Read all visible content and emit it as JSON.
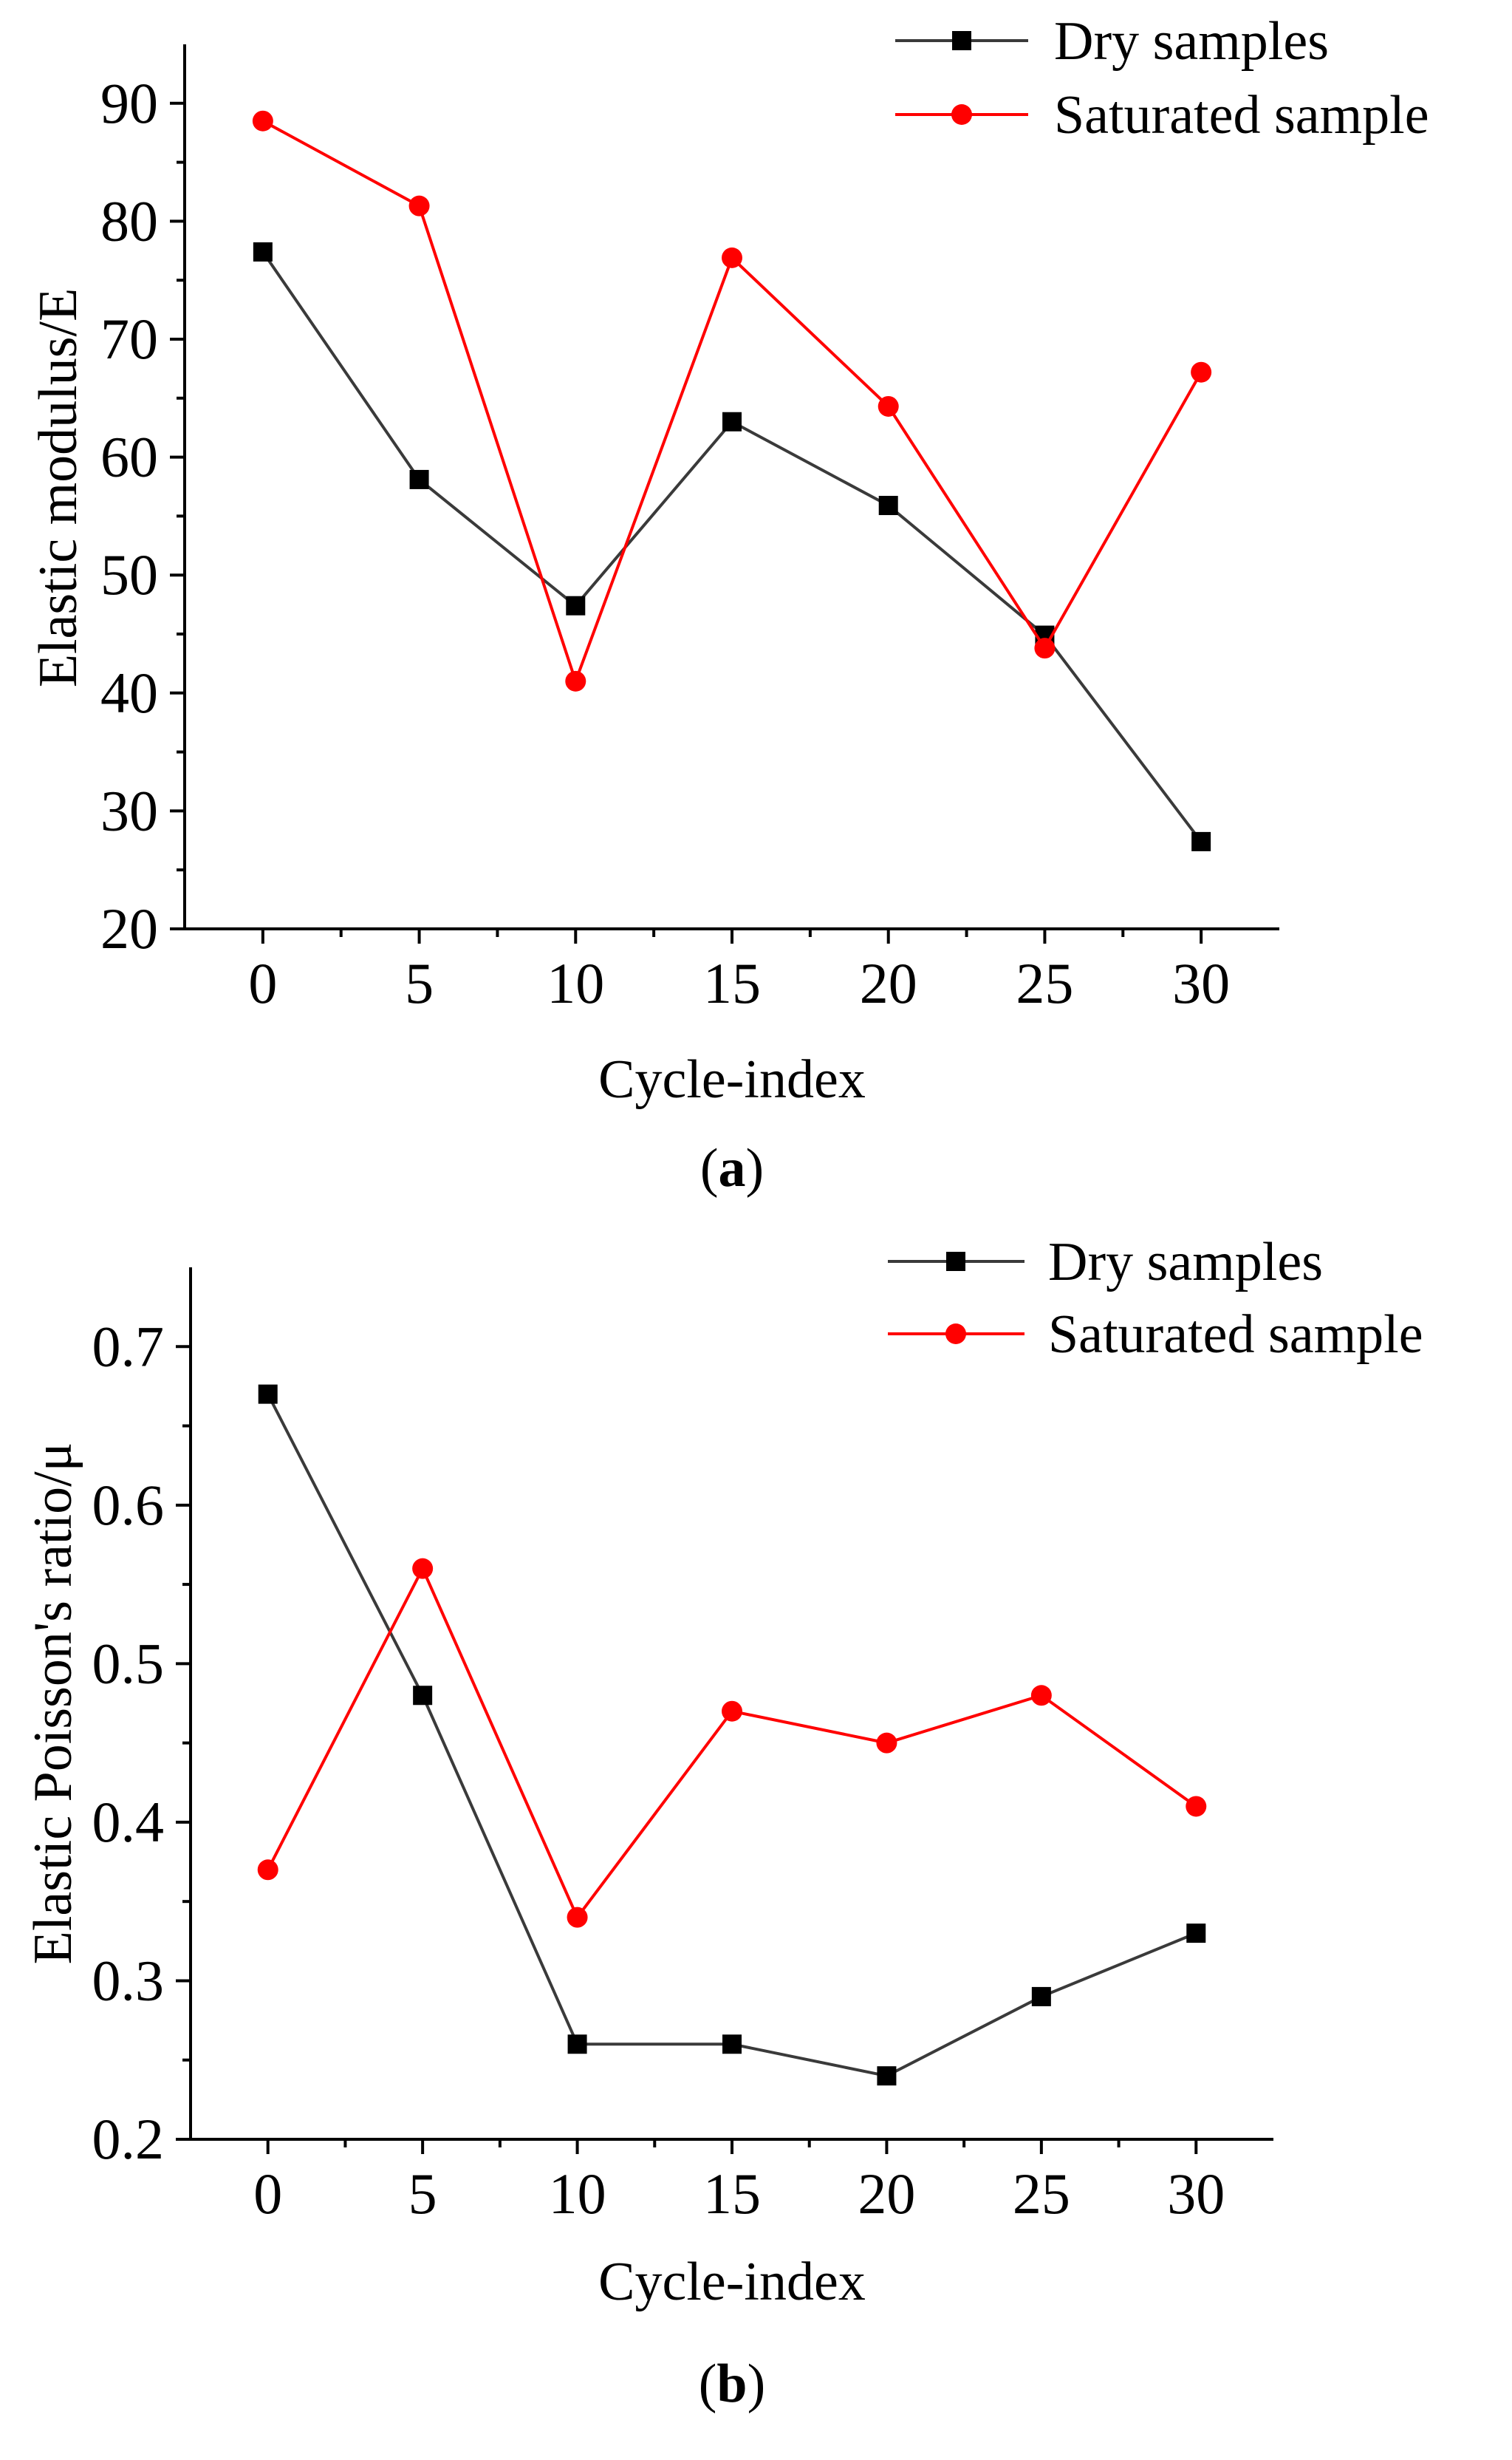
{
  "chart_data": [
    {
      "type": "line",
      "id": "a",
      "caption_letter": "a",
      "xlabel": "Cycle-index",
      "ylabel": "Elastic modulus/E",
      "x": [
        0,
        5,
        10,
        15,
        20,
        25,
        30
      ],
      "xticks": [
        0,
        5,
        10,
        15,
        20,
        25,
        30
      ],
      "xlim": [
        -2.5,
        32.5
      ],
      "ylim": [
        20,
        95
      ],
      "yticks": [
        20,
        30,
        40,
        50,
        60,
        70,
        80,
        90
      ],
      "ytick_labels": [
        "20",
        "30",
        "40",
        "50",
        "60",
        "70",
        "80",
        "90"
      ],
      "legend_position": "top-right",
      "series": [
        {
          "name": "Dry samples",
          "color": "#3a3a3a",
          "marker": "square",
          "values": [
            77.4,
            58.1,
            47.4,
            63.0,
            55.9,
            44.9,
            27.4
          ]
        },
        {
          "name": "Saturated sample",
          "color": "#ff0000",
          "marker": "circle",
          "values": [
            88.5,
            81.3,
            41.0,
            76.9,
            64.3,
            43.8,
            67.2
          ]
        }
      ]
    },
    {
      "type": "line",
      "id": "b",
      "caption_letter": "b",
      "xlabel": "Cycle-index",
      "ylabel": "Elastic Poisson's ratio/μ",
      "x": [
        0,
        5,
        10,
        15,
        20,
        25,
        30
      ],
      "xticks": [
        0,
        5,
        10,
        15,
        20,
        25,
        30
      ],
      "xlim": [
        -2.5,
        32.5
      ],
      "ylim": [
        0.2,
        0.75
      ],
      "yticks": [
        0.2,
        0.3,
        0.4,
        0.5,
        0.6,
        0.7
      ],
      "ytick_labels": [
        "0.2",
        "0.3",
        "0.4",
        "0.5",
        "0.6",
        "0.7"
      ],
      "legend_position": "top-right",
      "series": [
        {
          "name": "Dry samples",
          "color": "#3a3a3a",
          "marker": "square",
          "values": [
            0.67,
            0.48,
            0.26,
            0.26,
            0.24,
            0.29,
            0.33
          ]
        },
        {
          "name": "Saturated sample",
          "color": "#ff0000",
          "marker": "circle",
          "values": [
            0.37,
            0.56,
            0.34,
            0.47,
            0.45,
            0.48,
            0.41
          ]
        }
      ]
    }
  ]
}
